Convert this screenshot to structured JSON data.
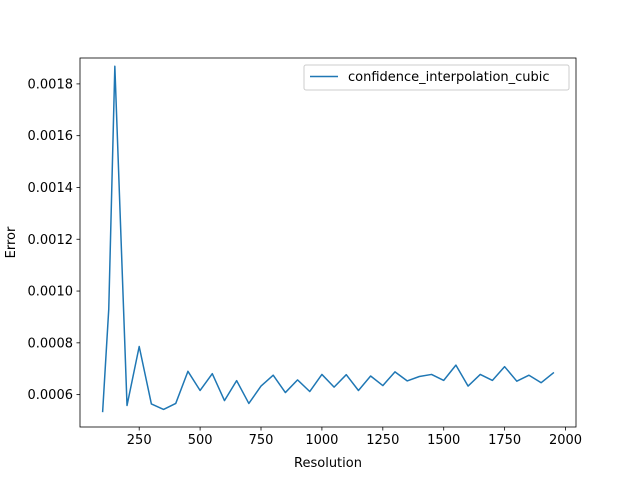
{
  "chart_data": {
    "type": "line",
    "xlabel": "Resolution",
    "ylabel": "Error",
    "xlim": [
      7,
      2043
    ],
    "ylim": [
      0.000475,
      0.0019
    ],
    "xticks": [
      250,
      500,
      750,
      1000,
      1250,
      1500,
      1750,
      2000
    ],
    "xtick_labels": [
      "250",
      "500",
      "750",
      "1000",
      "1250",
      "1500",
      "1750",
      "2000"
    ],
    "yticks": [
      0.0006,
      0.0008,
      0.001,
      0.0012,
      0.0014,
      0.0016,
      0.0018
    ],
    "ytick_labels": [
      "0.0006",
      "0.0008",
      "0.0010",
      "0.0012",
      "0.0014",
      "0.0016",
      "0.0018"
    ],
    "grid": false,
    "legend_position": "upper-right",
    "series": [
      {
        "name": "confidence_interpolation_cubic",
        "color": "#1f77b4",
        "x": [
          100,
          125,
          150,
          200,
          250,
          300,
          350,
          400,
          450,
          500,
          550,
          600,
          650,
          700,
          750,
          800,
          850,
          900,
          950,
          1000,
          1050,
          1100,
          1150,
          1200,
          1250,
          1300,
          1350,
          1400,
          1450,
          1500,
          1550,
          1600,
          1650,
          1700,
          1750,
          1800,
          1850,
          1900,
          1950
        ],
        "values": [
          0.000535,
          0.00093,
          0.001868,
          0.000558,
          0.000786,
          0.000564,
          0.000543,
          0.000566,
          0.00069,
          0.000616,
          0.000681,
          0.000577,
          0.000654,
          0.000566,
          0.000633,
          0.000675,
          0.000608,
          0.000657,
          0.000612,
          0.000678,
          0.000629,
          0.000677,
          0.000616,
          0.000672,
          0.000635,
          0.000688,
          0.000653,
          0.00067,
          0.000678,
          0.000655,
          0.000714,
          0.000633,
          0.000678,
          0.000655,
          0.000708,
          0.000652,
          0.000675,
          0.000646,
          0.000684
        ]
      }
    ]
  }
}
